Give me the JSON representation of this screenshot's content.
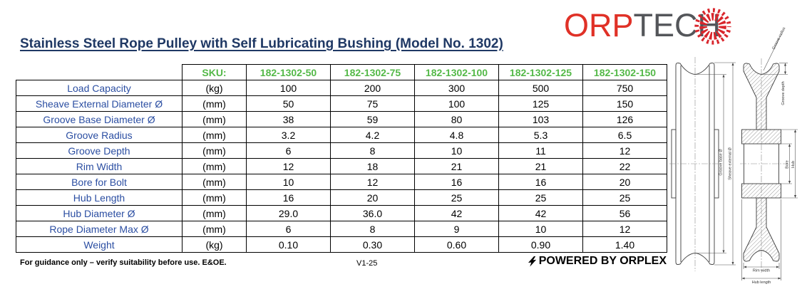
{
  "header": {
    "title": "Stainless Steel Rope Pulley with Self Lubricating Bushing (Model No. 1302)",
    "logo": {
      "orp": "ORP",
      "tech": "TECH"
    }
  },
  "table": {
    "sku_label": "SKU:",
    "sku_codes": [
      "182-1302-50",
      "182-1302-75",
      "182-1302-100",
      "182-1302-125",
      "182-1302-150"
    ],
    "rows": [
      {
        "label": "Load Capacity",
        "unit": "(kg)",
        "values": [
          "100",
          "200",
          "300",
          "500",
          "750"
        ]
      },
      {
        "label": "Sheave External Diameter Ø",
        "unit": "(mm)",
        "values": [
          "50",
          "75",
          "100",
          "125",
          "150"
        ]
      },
      {
        "label": "Groove Base Diameter Ø",
        "unit": "(mm)",
        "values": [
          "38",
          "59",
          "80",
          "103",
          "126"
        ]
      },
      {
        "label": "Groove Radius",
        "unit": "(mm)",
        "values": [
          "3.2",
          "4.2",
          "4.8",
          "5.3",
          "6.5"
        ]
      },
      {
        "label": "Groove Depth",
        "unit": "(mm)",
        "values": [
          "6",
          "8",
          "10",
          "11",
          "12"
        ]
      },
      {
        "label": "Rim Width",
        "unit": "(mm)",
        "values": [
          "12",
          "18",
          "21",
          "21",
          "22"
        ]
      },
      {
        "label": "Bore for Bolt",
        "unit": "(mm)",
        "values": [
          "10",
          "12",
          "16",
          "16",
          "20"
        ]
      },
      {
        "label": "Hub Length",
        "unit": "(mm)",
        "values": [
          "16",
          "20",
          "25",
          "25",
          "25"
        ]
      },
      {
        "label": "Hub Diameter Ø",
        "unit": "(mm)",
        "values": [
          "29.0",
          "36.0",
          "42",
          "42",
          "56"
        ]
      },
      {
        "label": "Rope Diameter Max Ø",
        "unit": "(mm)",
        "values": [
          "6",
          "8",
          "9",
          "10",
          "12"
        ]
      },
      {
        "label": "Weight",
        "unit": "(kg)",
        "values": [
          "0.10",
          "0.30",
          "0.60",
          "0.90",
          "1.40"
        ]
      }
    ]
  },
  "diagram": {
    "labels": {
      "groove_base": "Groove base Ø",
      "sheave_external": "Sheave external Ø",
      "groove_radius": "Groove radius",
      "groove_depth": "Groove depth",
      "bore": "Bore",
      "hub": "Hub",
      "rim_width": "Rim width",
      "hub_length": "Hub length"
    }
  },
  "footer": {
    "disclaimer": "For guidance only – verify suitability before use. E&OE.",
    "version": "V1-25",
    "powered_by": "POWERED BY ORPLEX"
  },
  "colors": {
    "title_blue": "#1F3864",
    "label_blue": "#2B4EA2",
    "sku_green": "#54B948",
    "logo_red": "#E03127",
    "logo_gray": "#54565A"
  }
}
